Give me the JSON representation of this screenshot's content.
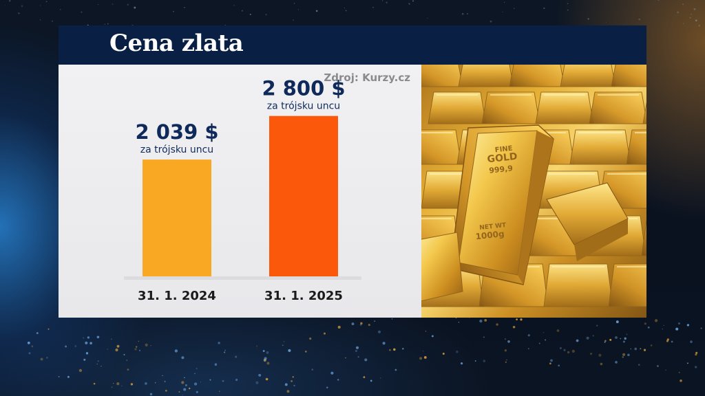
{
  "header": {
    "title": "Cena zlata"
  },
  "source": "Zdroj: Kurzy.cz",
  "chart_data": {
    "type": "bar",
    "title": "Cena zlata",
    "categories": [
      "31. 1. 2024",
      "31. 1. 2025"
    ],
    "values": [
      2039,
      2800
    ],
    "value_labels": [
      "2 039 $",
      "2 800 $"
    ],
    "unit_label": "za trójsku uncu",
    "bar_colors": [
      "#f8a822",
      "#fc580c"
    ],
    "ylim": [
      0,
      3000
    ],
    "grid": false,
    "legend": "none"
  },
  "photo": {
    "bar_lines": [
      "FINE",
      "GOLD",
      "999,9",
      "NET WT",
      "1000g"
    ]
  },
  "colors": {
    "header_bg": "#0a1f44",
    "value_text": "#0f2a5a",
    "source_text": "#8a8a8e"
  }
}
